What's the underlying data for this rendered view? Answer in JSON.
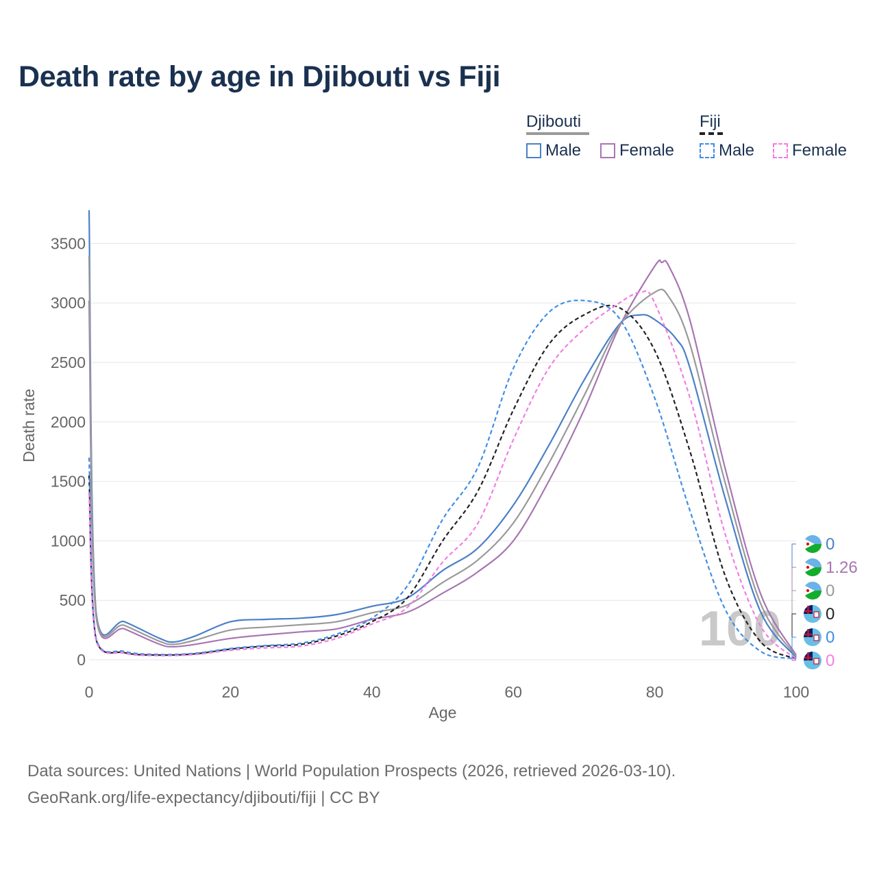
{
  "chart_data": {
    "type": "line",
    "title": "Death rate by age in Djibouti vs Fiji",
    "xlabel": "Age",
    "ylabel": "Death rate",
    "xlim": [
      0,
      100
    ],
    "ylim": [
      0,
      3750
    ],
    "xticks": [
      0,
      20,
      40,
      60,
      80,
      100
    ],
    "yticks": [
      0,
      500,
      1000,
      1500,
      2000,
      2500,
      3000,
      3500
    ],
    "grid": true,
    "year_watermark": "100",
    "legend_groups": [
      {
        "name": "Djibouti",
        "items": [
          "Male",
          "Female"
        ]
      },
      {
        "name": "Fiji",
        "items": [
          "Male",
          "Female"
        ]
      }
    ],
    "series": [
      {
        "name": "Djibouti Male",
        "country": "Djibouti",
        "sex": "Male",
        "color": "#4a7fc7",
        "dash": "solid",
        "x": [
          0,
          1,
          5,
          10,
          12,
          15,
          20,
          25,
          30,
          35,
          40,
          45,
          50,
          55,
          60,
          65,
          70,
          75,
          78,
          80,
          83,
          85,
          90,
          95,
          100
        ],
        "y": [
          3780,
          400,
          320,
          180,
          150,
          200,
          320,
          340,
          350,
          380,
          450,
          520,
          750,
          940,
          1300,
          1800,
          2350,
          2820,
          2900,
          2860,
          2700,
          2450,
          1350,
          400,
          20
        ],
        "end_label": "0"
      },
      {
        "name": "Djibouti Female",
        "country": "Djibouti",
        "sex": "Female",
        "color": "#a875b3",
        "dash": "solid",
        "x": [
          0,
          1,
          5,
          10,
          12,
          15,
          20,
          25,
          30,
          35,
          40,
          45,
          50,
          55,
          60,
          65,
          70,
          75,
          80,
          81,
          82,
          85,
          90,
          95,
          100
        ],
        "y": [
          3020,
          360,
          260,
          130,
          110,
          130,
          180,
          210,
          235,
          260,
          340,
          400,
          560,
          740,
          1000,
          1500,
          2100,
          2800,
          3310,
          3340,
          3310,
          2850,
          1600,
          550,
          40
        ],
        "end_label": "1.26"
      },
      {
        "name": "Djibouti Total",
        "country": "Djibouti",
        "sex": "Total",
        "color": "#999999",
        "dash": "solid",
        "x": [
          0,
          1,
          5,
          10,
          12,
          15,
          20,
          25,
          30,
          35,
          40,
          45,
          50,
          55,
          60,
          65,
          70,
          75,
          80,
          82,
          85,
          90,
          95,
          100
        ],
        "y": [
          3400,
          380,
          290,
          155,
          130,
          165,
          250,
          275,
          295,
          320,
          395,
          460,
          650,
          840,
          1150,
          1650,
          2220,
          2810,
          3090,
          3050,
          2650,
          1480,
          470,
          30
        ],
        "end_label": "0"
      },
      {
        "name": "Fiji Total",
        "country": "Fiji",
        "sex": "Total",
        "color": "#222222",
        "dash": "dashed",
        "x": [
          0,
          1,
          5,
          10,
          15,
          20,
          25,
          30,
          35,
          40,
          45,
          50,
          55,
          60,
          65,
          70,
          75,
          80,
          85,
          90,
          95,
          100
        ],
        "y": [
          1550,
          170,
          60,
          40,
          50,
          90,
          115,
          130,
          200,
          320,
          520,
          1000,
          1420,
          2100,
          2650,
          2900,
          2960,
          2600,
          1750,
          700,
          150,
          10
        ],
        "end_label": "0"
      },
      {
        "name": "Fiji Male",
        "country": "Fiji",
        "sex": "Male",
        "color": "#3f8ee6",
        "dash": "dashed",
        "x": [
          0,
          1,
          5,
          10,
          15,
          20,
          25,
          30,
          35,
          40,
          45,
          50,
          55,
          60,
          65,
          70,
          75,
          80,
          85,
          90,
          95,
          100
        ],
        "y": [
          1700,
          180,
          70,
          45,
          55,
          95,
          120,
          140,
          215,
          350,
          620,
          1180,
          1620,
          2450,
          2920,
          3020,
          2870,
          2200,
          1250,
          420,
          70,
          10
        ],
        "end_label": "0"
      },
      {
        "name": "Fiji Female",
        "country": "Fiji",
        "sex": "Female",
        "color": "#f27ee3",
        "dash": "dashed",
        "x": [
          0,
          1,
          5,
          10,
          15,
          20,
          25,
          30,
          35,
          40,
          45,
          50,
          55,
          60,
          65,
          70,
          75,
          78,
          80,
          85,
          90,
          95,
          100
        ],
        "y": [
          1400,
          160,
          55,
          35,
          45,
          80,
          100,
          115,
          180,
          300,
          440,
          820,
          1150,
          1850,
          2450,
          2780,
          3000,
          3090,
          3000,
          2200,
          1050,
          280,
          10
        ],
        "end_label": "0"
      }
    ]
  },
  "legend": {
    "djibouti": "Djibouti",
    "fiji": "Fiji",
    "male": "Male",
    "female": "Female"
  },
  "footer": {
    "line1": "Data sources: United Nations | World Population Prospects (2026, retrieved 2026-03-10).",
    "line2": "GeoRank.org/life-expectancy/djibouti/fiji | CC BY"
  },
  "colors": {
    "title": "#1a3150",
    "grid": "#e6e6e6",
    "axis_text": "#666666",
    "watermark": "#c9c9c9"
  }
}
